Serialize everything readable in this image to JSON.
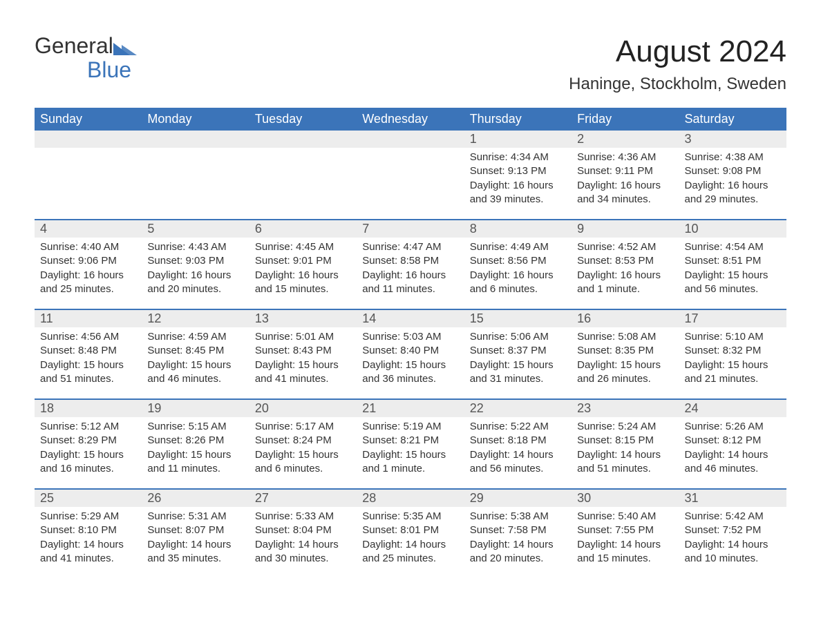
{
  "logo": {
    "text1": "General",
    "text2": "Blue"
  },
  "title": "August 2024",
  "subtitle": "Haninge, Stockholm, Sweden",
  "colors": {
    "header_bg": "#3b74b9",
    "header_text": "#ffffff",
    "daynum_bg": "#ededed",
    "border": "#3b74b9",
    "text": "#333333",
    "background": "#ffffff"
  },
  "fonts": {
    "title_size": 44,
    "subtitle_size": 24,
    "header_size": 18,
    "daynum_size": 18,
    "body_size": 15
  },
  "weekdays": [
    "Sunday",
    "Monday",
    "Tuesday",
    "Wednesday",
    "Thursday",
    "Friday",
    "Saturday"
  ],
  "weeks": [
    [
      null,
      null,
      null,
      null,
      {
        "n": "1",
        "sunrise": "Sunrise: 4:34 AM",
        "sunset": "Sunset: 9:13 PM",
        "daylight": "Daylight: 16 hours and 39 minutes."
      },
      {
        "n": "2",
        "sunrise": "Sunrise: 4:36 AM",
        "sunset": "Sunset: 9:11 PM",
        "daylight": "Daylight: 16 hours and 34 minutes."
      },
      {
        "n": "3",
        "sunrise": "Sunrise: 4:38 AM",
        "sunset": "Sunset: 9:08 PM",
        "daylight": "Daylight: 16 hours and 29 minutes."
      }
    ],
    [
      {
        "n": "4",
        "sunrise": "Sunrise: 4:40 AM",
        "sunset": "Sunset: 9:06 PM",
        "daylight": "Daylight: 16 hours and 25 minutes."
      },
      {
        "n": "5",
        "sunrise": "Sunrise: 4:43 AM",
        "sunset": "Sunset: 9:03 PM",
        "daylight": "Daylight: 16 hours and 20 minutes."
      },
      {
        "n": "6",
        "sunrise": "Sunrise: 4:45 AM",
        "sunset": "Sunset: 9:01 PM",
        "daylight": "Daylight: 16 hours and 15 minutes."
      },
      {
        "n": "7",
        "sunrise": "Sunrise: 4:47 AM",
        "sunset": "Sunset: 8:58 PM",
        "daylight": "Daylight: 16 hours and 11 minutes."
      },
      {
        "n": "8",
        "sunrise": "Sunrise: 4:49 AM",
        "sunset": "Sunset: 8:56 PM",
        "daylight": "Daylight: 16 hours and 6 minutes."
      },
      {
        "n": "9",
        "sunrise": "Sunrise: 4:52 AM",
        "sunset": "Sunset: 8:53 PM",
        "daylight": "Daylight: 16 hours and 1 minute."
      },
      {
        "n": "10",
        "sunrise": "Sunrise: 4:54 AM",
        "sunset": "Sunset: 8:51 PM",
        "daylight": "Daylight: 15 hours and 56 minutes."
      }
    ],
    [
      {
        "n": "11",
        "sunrise": "Sunrise: 4:56 AM",
        "sunset": "Sunset: 8:48 PM",
        "daylight": "Daylight: 15 hours and 51 minutes."
      },
      {
        "n": "12",
        "sunrise": "Sunrise: 4:59 AM",
        "sunset": "Sunset: 8:45 PM",
        "daylight": "Daylight: 15 hours and 46 minutes."
      },
      {
        "n": "13",
        "sunrise": "Sunrise: 5:01 AM",
        "sunset": "Sunset: 8:43 PM",
        "daylight": "Daylight: 15 hours and 41 minutes."
      },
      {
        "n": "14",
        "sunrise": "Sunrise: 5:03 AM",
        "sunset": "Sunset: 8:40 PM",
        "daylight": "Daylight: 15 hours and 36 minutes."
      },
      {
        "n": "15",
        "sunrise": "Sunrise: 5:06 AM",
        "sunset": "Sunset: 8:37 PM",
        "daylight": "Daylight: 15 hours and 31 minutes."
      },
      {
        "n": "16",
        "sunrise": "Sunrise: 5:08 AM",
        "sunset": "Sunset: 8:35 PM",
        "daylight": "Daylight: 15 hours and 26 minutes."
      },
      {
        "n": "17",
        "sunrise": "Sunrise: 5:10 AM",
        "sunset": "Sunset: 8:32 PM",
        "daylight": "Daylight: 15 hours and 21 minutes."
      }
    ],
    [
      {
        "n": "18",
        "sunrise": "Sunrise: 5:12 AM",
        "sunset": "Sunset: 8:29 PM",
        "daylight": "Daylight: 15 hours and 16 minutes."
      },
      {
        "n": "19",
        "sunrise": "Sunrise: 5:15 AM",
        "sunset": "Sunset: 8:26 PM",
        "daylight": "Daylight: 15 hours and 11 minutes."
      },
      {
        "n": "20",
        "sunrise": "Sunrise: 5:17 AM",
        "sunset": "Sunset: 8:24 PM",
        "daylight": "Daylight: 15 hours and 6 minutes."
      },
      {
        "n": "21",
        "sunrise": "Sunrise: 5:19 AM",
        "sunset": "Sunset: 8:21 PM",
        "daylight": "Daylight: 15 hours and 1 minute."
      },
      {
        "n": "22",
        "sunrise": "Sunrise: 5:22 AM",
        "sunset": "Sunset: 8:18 PM",
        "daylight": "Daylight: 14 hours and 56 minutes."
      },
      {
        "n": "23",
        "sunrise": "Sunrise: 5:24 AM",
        "sunset": "Sunset: 8:15 PM",
        "daylight": "Daylight: 14 hours and 51 minutes."
      },
      {
        "n": "24",
        "sunrise": "Sunrise: 5:26 AM",
        "sunset": "Sunset: 8:12 PM",
        "daylight": "Daylight: 14 hours and 46 minutes."
      }
    ],
    [
      {
        "n": "25",
        "sunrise": "Sunrise: 5:29 AM",
        "sunset": "Sunset: 8:10 PM",
        "daylight": "Daylight: 14 hours and 41 minutes."
      },
      {
        "n": "26",
        "sunrise": "Sunrise: 5:31 AM",
        "sunset": "Sunset: 8:07 PM",
        "daylight": "Daylight: 14 hours and 35 minutes."
      },
      {
        "n": "27",
        "sunrise": "Sunrise: 5:33 AM",
        "sunset": "Sunset: 8:04 PM",
        "daylight": "Daylight: 14 hours and 30 minutes."
      },
      {
        "n": "28",
        "sunrise": "Sunrise: 5:35 AM",
        "sunset": "Sunset: 8:01 PM",
        "daylight": "Daylight: 14 hours and 25 minutes."
      },
      {
        "n": "29",
        "sunrise": "Sunrise: 5:38 AM",
        "sunset": "Sunset: 7:58 PM",
        "daylight": "Daylight: 14 hours and 20 minutes."
      },
      {
        "n": "30",
        "sunrise": "Sunrise: 5:40 AM",
        "sunset": "Sunset: 7:55 PM",
        "daylight": "Daylight: 14 hours and 15 minutes."
      },
      {
        "n": "31",
        "sunrise": "Sunrise: 5:42 AM",
        "sunset": "Sunset: 7:52 PM",
        "daylight": "Daylight: 14 hours and 10 minutes."
      }
    ]
  ]
}
